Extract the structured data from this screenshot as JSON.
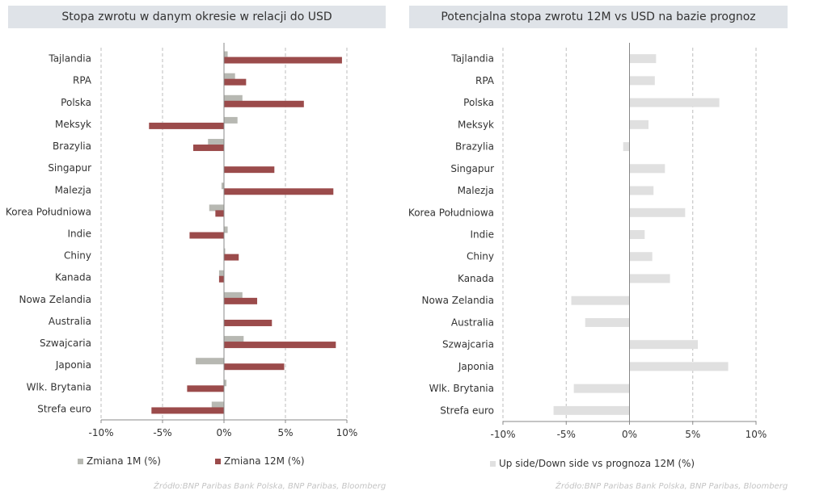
{
  "colors": {
    "m1": "#b7b8b2",
    "m12": "#9b4b4b",
    "forecast": "#e0e0e0",
    "grid": "#bdbdbd",
    "title_bg": "#dfe3e8"
  },
  "chart_data": [
    {
      "type": "bar",
      "orientation": "horizontal",
      "title": "Stopa zwrotu w danym okresie w relacji do USD",
      "categories": [
        "Tajlandia",
        "RPA",
        "Polska",
        "Meksyk",
        "Brazylia",
        "Singapur",
        "Malezja",
        "Korea Południowa",
        "Indie",
        "Chiny",
        "Kanada",
        "Nowa Zelandia",
        "Australia",
        "Szwajcaria",
        "Japonia",
        "Wlk. Brytania",
        "Strefa euro"
      ],
      "series": [
        {
          "name": "Zmiana 1M (%)",
          "values": [
            0.3,
            0.9,
            1.5,
            1.1,
            -1.3,
            0.0,
            -0.2,
            -1.2,
            0.3,
            0.1,
            -0.4,
            1.5,
            0.0,
            1.6,
            -2.3,
            0.2,
            -1.0
          ]
        },
        {
          "name": "Zmiana 12M (%)",
          "values": [
            9.6,
            1.8,
            6.5,
            -6.1,
            -2.5,
            4.1,
            8.9,
            -0.7,
            -2.8,
            1.2,
            -0.4,
            2.7,
            3.9,
            9.1,
            4.9,
            -3.0,
            -5.9
          ]
        }
      ],
      "xlim": [
        -10,
        10
      ],
      "xticks": [
        -10,
        -5,
        0,
        5,
        10
      ],
      "xtick_labels": [
        "-10%",
        "-5%",
        "0%",
        "5%",
        "10%"
      ],
      "legend": [
        "Zmiana 1M (%)",
        "Zmiana 12M (%)"
      ],
      "source": "Źródło:BNP Paribas Bank Polska, BNP Paribas, Bloomberg"
    },
    {
      "type": "bar",
      "orientation": "horizontal",
      "title": "Potencjalna stopa zwrotu 12M vs USD na bazie prognoz",
      "categories": [
        "Tajlandia",
        "RPA",
        "Polska",
        "Meksyk",
        "Brazylia",
        "Singapur",
        "Malezja",
        "Korea Południowa",
        "Indie",
        "Chiny",
        "Kanada",
        "Nowa Zelandia",
        "Australia",
        "Szwajcaria",
        "Japonia",
        "Wlk. Brytania",
        "Strefa euro"
      ],
      "series": [
        {
          "name": "Up side/Down side vs prognoza 12M (%)",
          "values": [
            2.1,
            2.0,
            7.1,
            1.5,
            -0.5,
            2.8,
            1.9,
            4.4,
            1.2,
            1.8,
            3.2,
            -4.6,
            -3.5,
            5.4,
            7.8,
            -4.4,
            -6.0
          ]
        }
      ],
      "xlim": [
        -10,
        10
      ],
      "xticks": [
        -10,
        -5,
        0,
        5,
        10
      ],
      "xtick_labels": [
        "-10%",
        "-5%",
        "0%",
        "5%",
        "10%"
      ],
      "legend": [
        "Up side/Down side vs prognoza 12M (%)"
      ],
      "source": "Źródło:BNP Paribas Bank Polska, BNP Paribas, Bloomberg"
    }
  ]
}
